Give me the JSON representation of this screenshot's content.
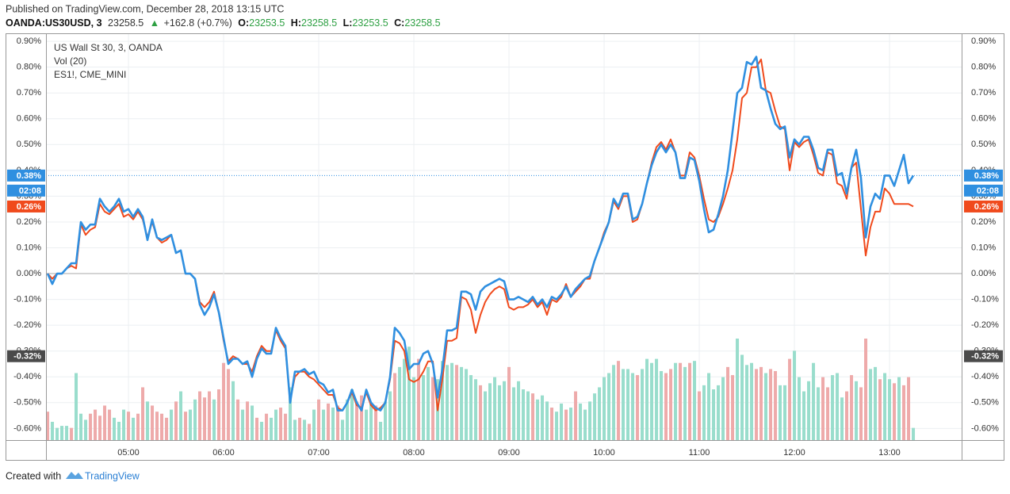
{
  "header": {
    "published": "Published on TradingView.com, December 28, 2018 13:15 UTC",
    "symbol": "OANDA:US30USD, 3",
    "last": "23258.5",
    "change": "+162.8 (+0.7%)",
    "ohlc": [
      {
        "label": "O:",
        "value": "23253.5"
      },
      {
        "label": "H:",
        "value": "23258.5"
      },
      {
        "label": "L:",
        "value": "23253.5"
      },
      {
        "label": "C:",
        "value": "23258.5"
      }
    ]
  },
  "chart_data": {
    "type": "line",
    "x": [
      4.15,
      4.2,
      4.25,
      4.3,
      4.35,
      4.4,
      4.45,
      4.5,
      4.55,
      4.6,
      4.65,
      4.7,
      4.75,
      4.8,
      4.85,
      4.9,
      4.95,
      5,
      5.05,
      5.1,
      5.15,
      5.2,
      5.25,
      5.3,
      5.35,
      5.4,
      5.45,
      5.5,
      5.55,
      5.6,
      5.65,
      5.7,
      5.75,
      5.8,
      5.85,
      5.9,
      5.95,
      6,
      6.05,
      6.1,
      6.15,
      6.2,
      6.25,
      6.3,
      6.35,
      6.4,
      6.45,
      6.5,
      6.55,
      6.6,
      6.65,
      6.7,
      6.75,
      6.8,
      6.85,
      6.9,
      6.95,
      7,
      7.05,
      7.1,
      7.15,
      7.2,
      7.25,
      7.3,
      7.35,
      7.4,
      7.45,
      7.5,
      7.55,
      7.6,
      7.65,
      7.7,
      7.75,
      7.8,
      7.85,
      7.9,
      7.95,
      8,
      8.05,
      8.1,
      8.15,
      8.2,
      8.25,
      8.3,
      8.35,
      8.4,
      8.45,
      8.5,
      8.55,
      8.6,
      8.65,
      8.7,
      8.75,
      8.8,
      8.85,
      8.9,
      8.95,
      9,
      9.05,
      9.1,
      9.15,
      9.2,
      9.25,
      9.3,
      9.35,
      9.4,
      9.45,
      9.5,
      9.55,
      9.6,
      9.65,
      9.7,
      9.75,
      9.8,
      9.85,
      9.9,
      9.95,
      10,
      10.05,
      10.1,
      10.15,
      10.2,
      10.25,
      10.3,
      10.35,
      10.4,
      10.45,
      10.5,
      10.55,
      10.6,
      10.65,
      10.7,
      10.75,
      10.8,
      10.85,
      10.9,
      10.95,
      11,
      11.05,
      11.1,
      11.15,
      11.2,
      11.25,
      11.3,
      11.35,
      11.4,
      11.45,
      11.5,
      11.55,
      11.6,
      11.65,
      11.7,
      11.75,
      11.8,
      11.85,
      11.9,
      11.95,
      12,
      12.05,
      12.1,
      12.15,
      12.2,
      12.25,
      12.3,
      12.35,
      12.4,
      12.45,
      12.5,
      12.55,
      12.6,
      12.65,
      12.7,
      12.75,
      12.8,
      12.85,
      12.9,
      12.95,
      13,
      13.05,
      13.1,
      13.15,
      13.2,
      13.25
    ],
    "xlim": [
      4.133,
      13.758
    ],
    "xticks": [
      {
        "value": 5,
        "label": "05:00"
      },
      {
        "value": 6,
        "label": "06:00"
      },
      {
        "value": 7,
        "label": "07:00"
      },
      {
        "value": 8,
        "label": "08:00"
      },
      {
        "value": 9,
        "label": "09:00"
      },
      {
        "value": 10,
        "label": "10:00"
      },
      {
        "value": 11,
        "label": "11:00"
      },
      {
        "value": 12,
        "label": "12:00"
      },
      {
        "value": 13,
        "label": "13:00"
      }
    ],
    "ylim": [
      -0.645,
      0.928
    ],
    "yticks": [
      {
        "value": 0.9,
        "label": "0.90%"
      },
      {
        "value": 0.8,
        "label": "0.80%"
      },
      {
        "value": 0.7,
        "label": "0.70%"
      },
      {
        "value": 0.6,
        "label": "0.60%"
      },
      {
        "value": 0.5,
        "label": "0.50%"
      },
      {
        "value": 0.4,
        "label": "0.40%"
      },
      {
        "value": 0.3,
        "label": "0.30%"
      },
      {
        "value": 0.2,
        "label": "0.20%"
      },
      {
        "value": 0.1,
        "label": "0.10%"
      },
      {
        "value": 0,
        "label": "0.00%"
      },
      {
        "value": -0.1,
        "label": "-0.10%"
      },
      {
        "value": -0.2,
        "label": "-0.20%"
      },
      {
        "value": -0.3,
        "label": "-0.30%"
      },
      {
        "value": -0.4,
        "label": "-0.40%"
      },
      {
        "value": -0.5,
        "label": "-0.50%"
      },
      {
        "value": -0.6,
        "label": "-0.60%"
      }
    ],
    "grid": true,
    "series": [
      {
        "name": "US Wall St 30, 3, OANDA",
        "color": "#2f8fe0",
        "last_label": "0.38%",
        "values": [
          0,
          -0.04,
          0,
          0,
          0.02,
          0.04,
          0.04,
          0.2,
          0.17,
          0.19,
          0.19,
          0.29,
          0.26,
          0.24,
          0.26,
          0.29,
          0.24,
          0.25,
          0.22,
          0.25,
          0.22,
          0.13,
          0.21,
          0.14,
          0.13,
          0.14,
          0.15,
          0.08,
          0.09,
          0,
          0,
          -0.02,
          -0.12,
          -0.16,
          -0.13,
          -0.08,
          -0.15,
          -0.25,
          -0.35,
          -0.33,
          -0.33,
          -0.35,
          -0.34,
          -0.4,
          -0.33,
          -0.29,
          -0.31,
          -0.31,
          -0.21,
          -0.25,
          -0.28,
          -0.5,
          -0.38,
          -0.38,
          -0.37,
          -0.39,
          -0.38,
          -0.42,
          -0.43,
          -0.46,
          -0.45,
          -0.53,
          -0.53,
          -0.5,
          -0.45,
          -0.5,
          -0.53,
          -0.45,
          -0.5,
          -0.52,
          -0.53,
          -0.5,
          -0.4,
          -0.21,
          -0.23,
          -0.26,
          -0.37,
          -0.35,
          -0.35,
          -0.31,
          -0.3,
          -0.35,
          -0.48,
          -0.37,
          -0.22,
          -0.22,
          -0.21,
          -0.07,
          -0.07,
          -0.08,
          -0.14,
          -0.07,
          -0.05,
          -0.04,
          -0.03,
          -0.02,
          -0.03,
          -0.1,
          -0.1,
          -0.09,
          -0.1,
          -0.11,
          -0.09,
          -0.12,
          -0.1,
          -0.13,
          -0.09,
          -0.1,
          -0.08,
          -0.05,
          -0.09,
          -0.06,
          -0.04,
          -0.02,
          -0.01,
          0.05,
          0.1,
          0.15,
          0.2,
          0.29,
          0.26,
          0.31,
          0.31,
          0.21,
          0.22,
          0.27,
          0.35,
          0.42,
          0.47,
          0.5,
          0.47,
          0.5,
          0.47,
          0.37,
          0.37,
          0.45,
          0.44,
          0.36,
          0.25,
          0.16,
          0.17,
          0.23,
          0.3,
          0.4,
          0.55,
          0.7,
          0.72,
          0.82,
          0.81,
          0.84,
          0.72,
          0.71,
          0.64,
          0.58,
          0.56,
          0.57,
          0.45,
          0.52,
          0.5,
          0.53,
          0.53,
          0.48,
          0.41,
          0.4,
          0.48,
          0.48,
          0.38,
          0.39,
          0.31,
          0.41,
          0.48,
          0.37,
          0.14,
          0.26,
          0.31,
          0.29,
          0.38,
          0.38,
          0.34,
          0.4,
          0.46,
          0.35,
          0.38
        ]
      },
      {
        "name": "ES1!, CME_MINI",
        "color": "#f04a1c",
        "last_label": "0.26%",
        "values": [
          0,
          -0.02,
          0,
          0,
          0.02,
          0.03,
          0.02,
          0.19,
          0.15,
          0.17,
          0.18,
          0.27,
          0.24,
          0.23,
          0.25,
          0.27,
          0.22,
          0.23,
          0.21,
          0.24,
          0.21,
          0.14,
          0.2,
          0.14,
          0.12,
          0.13,
          0.15,
          0.08,
          0.09,
          0,
          0,
          -0.02,
          -0.11,
          -0.13,
          -0.11,
          -0.07,
          -0.15,
          -0.26,
          -0.34,
          -0.32,
          -0.33,
          -0.35,
          -0.35,
          -0.38,
          -0.32,
          -0.28,
          -0.3,
          -0.3,
          -0.22,
          -0.26,
          -0.29,
          -0.49,
          -0.4,
          -0.38,
          -0.38,
          -0.4,
          -0.41,
          -0.43,
          -0.45,
          -0.47,
          -0.47,
          -0.52,
          -0.53,
          -0.5,
          -0.46,
          -0.51,
          -0.52,
          -0.46,
          -0.51,
          -0.53,
          -0.52,
          -0.5,
          -0.41,
          -0.26,
          -0.27,
          -0.3,
          -0.41,
          -0.42,
          -0.41,
          -0.38,
          -0.34,
          -0.34,
          -0.53,
          -0.41,
          -0.26,
          -0.26,
          -0.25,
          -0.09,
          -0.1,
          -0.14,
          -0.23,
          -0.16,
          -0.11,
          -0.08,
          -0.06,
          -0.05,
          -0.06,
          -0.13,
          -0.14,
          -0.13,
          -0.13,
          -0.12,
          -0.1,
          -0.13,
          -0.11,
          -0.16,
          -0.1,
          -0.11,
          -0.09,
          -0.04,
          -0.09,
          -0.07,
          -0.05,
          -0.02,
          -0.02,
          0.05,
          0.1,
          0.16,
          0.2,
          0.28,
          0.25,
          0.3,
          0.3,
          0.2,
          0.21,
          0.27,
          0.35,
          0.43,
          0.49,
          0.51,
          0.48,
          0.52,
          0.47,
          0.38,
          0.38,
          0.47,
          0.45,
          0.38,
          0.29,
          0.21,
          0.2,
          0.22,
          0.27,
          0.33,
          0.4,
          0.52,
          0.68,
          0.7,
          0.8,
          0.8,
          0.83,
          0.71,
          0.7,
          0.63,
          0.57,
          0.56,
          0.4,
          0.51,
          0.49,
          0.51,
          0.52,
          0.46,
          0.39,
          0.38,
          0.47,
          0.46,
          0.35,
          0.34,
          0.29,
          0.41,
          0.43,
          0.25,
          0.07,
          0.18,
          0.24,
          0.24,
          0.33,
          0.31,
          0.27,
          0.27,
          0.27,
          0.27,
          0.26
        ]
      }
    ],
    "volume": {
      "name": "Vol (20)",
      "vlim": [
        0,
        100
      ],
      "values": [
        28,
        18,
        12,
        14,
        14,
        12,
        66,
        26,
        20,
        26,
        30,
        24,
        34,
        30,
        22,
        18,
        30,
        28,
        22,
        26,
        52,
        38,
        34,
        28,
        26,
        22,
        30,
        38,
        48,
        28,
        30,
        40,
        48,
        42,
        48,
        40,
        50,
        76,
        70,
        58,
        40,
        30,
        38,
        34,
        22,
        18,
        26,
        22,
        30,
        32,
        26,
        52,
        20,
        22,
        20,
        16,
        30,
        40,
        30,
        36,
        32,
        34,
        20,
        40,
        50,
        38,
        44,
        30,
        36,
        34,
        18,
        38,
        48,
        66,
        72,
        80,
        92,
        62,
        80,
        64,
        72,
        62,
        60,
        78,
        74,
        76,
        74,
        72,
        70,
        64,
        60,
        54,
        48,
        56,
        62,
        54,
        58,
        72,
        52,
        58,
        50,
        48,
        46,
        40,
        44,
        38,
        32,
        28,
        36,
        30,
        32,
        48,
        36,
        30,
        38,
        46,
        52,
        62,
        66,
        74,
        78,
        70,
        70,
        66,
        64,
        70,
        80,
        76,
        80,
        68,
        66,
        70,
        76,
        76,
        72,
        76,
        78,
        48,
        54,
        66,
        50,
        54,
        62,
        72,
        64,
        100,
        84,
        74,
        76,
        70,
        72,
        66,
        70,
        68,
        54,
        54,
        80,
        88,
        62,
        48,
        58,
        76,
        52,
        62,
        52,
        64,
        66,
        42,
        48,
        64,
        58,
        52,
        100,
        70,
        72,
        60,
        66,
        60,
        56,
        62,
        54,
        62,
        12
      ],
      "colors": [
        "#eaa",
        "#9dc",
        "#9dc",
        "#9dc",
        "#9dc",
        "#eaa",
        "#9dc",
        "#9dc",
        "#9dc",
        "#eaa",
        "#eaa",
        "#eaa",
        "#eaa",
        "#eaa",
        "#9dc",
        "#9dc",
        "#9dc",
        "#eaa",
        "#9dc",
        "#eaa",
        "#eaa",
        "#9dc",
        "#eaa",
        "#eaa",
        "#eaa",
        "#eaa",
        "#9dc",
        "#eaa",
        "#9dc",
        "#eaa",
        "#9dc",
        "#9dc",
        "#eaa",
        "#eaa",
        "#eaa",
        "#9dc",
        "#eaa",
        "#eaa",
        "#eaa",
        "#9dc",
        "#eaa",
        "#9dc",
        "#eaa",
        "#9dc",
        "#eaa",
        "#9dc",
        "#eaa",
        "#9dc",
        "#9dc",
        "#eaa",
        "#eaa",
        "#9dc",
        "#9dc",
        "#eaa",
        "#9dc",
        "#eaa",
        "#9dc",
        "#eaa",
        "#9dc",
        "#eaa",
        "#9dc",
        "#eaa",
        "#9dc",
        "#9dc",
        "#9dc",
        "#eaa",
        "#eaa",
        "#9dc",
        "#9dc",
        "#eaa",
        "#9dc",
        "#9dc",
        "#9dc",
        "#eaa",
        "#9dc",
        "#9dc",
        "#9dc",
        "#9dc",
        "#eaa",
        "#9dc",
        "#9dc",
        "#eaa",
        "#9dc",
        "#9dc",
        "#9dc",
        "#9dc",
        "#eaa",
        "#9dc",
        "#9dc",
        "#9dc",
        "#9dc",
        "#eaa",
        "#9dc",
        "#9dc",
        "#9dc",
        "#9dc",
        "#9dc",
        "#eaa",
        "#9dc",
        "#9dc",
        "#9dc",
        "#9dc",
        "#eaa",
        "#9dc",
        "#9dc",
        "#9dc",
        "#eaa",
        "#9dc",
        "#9dc",
        "#eaa",
        "#9dc",
        "#eaa",
        "#9dc",
        "#9dc",
        "#9dc",
        "#9dc",
        "#9dc",
        "#9dc",
        "#9dc",
        "#9dc",
        "#eaa",
        "#9dc",
        "#9dc",
        "#9dc",
        "#eaa",
        "#9dc",
        "#9dc",
        "#9dc",
        "#9dc",
        "#9dc",
        "#eaa",
        "#eaa",
        "#9dc",
        "#eaa",
        "#9dc",
        "#eaa",
        "#9dc",
        "#eaa",
        "#9dc",
        "#9dc",
        "#9dc",
        "#9dc",
        "#9dc",
        "#eaa",
        "#eaa",
        "#9dc",
        "#9dc",
        "#9dc",
        "#9dc",
        "#eaa",
        "#eaa",
        "#9dc",
        "#eaa",
        "#eaa",
        "#9dc",
        "#9dc",
        "#eaa",
        "#9dc",
        "#9dc",
        "#9dc",
        "#9dc",
        "#9dc",
        "#9dc",
        "#eaa",
        "#eaa",
        "#9dc",
        "#9dc",
        "#9dc",
        "#eaa",
        "#eaa",
        "#9dc",
        "#eaa",
        "#eaa",
        "#9dc",
        "#9dc",
        "#eaa",
        "#9dc",
        "#9dc",
        "#eaa",
        "#9dc",
        "#eaa",
        "#eaa",
        "#9dc"
      ]
    },
    "countdown": "02:08",
    "crosshair": {
      "value": -0.32,
      "label": "-0.32%"
    }
  },
  "footer": {
    "created": "Created with",
    "brand": "TradingView"
  }
}
